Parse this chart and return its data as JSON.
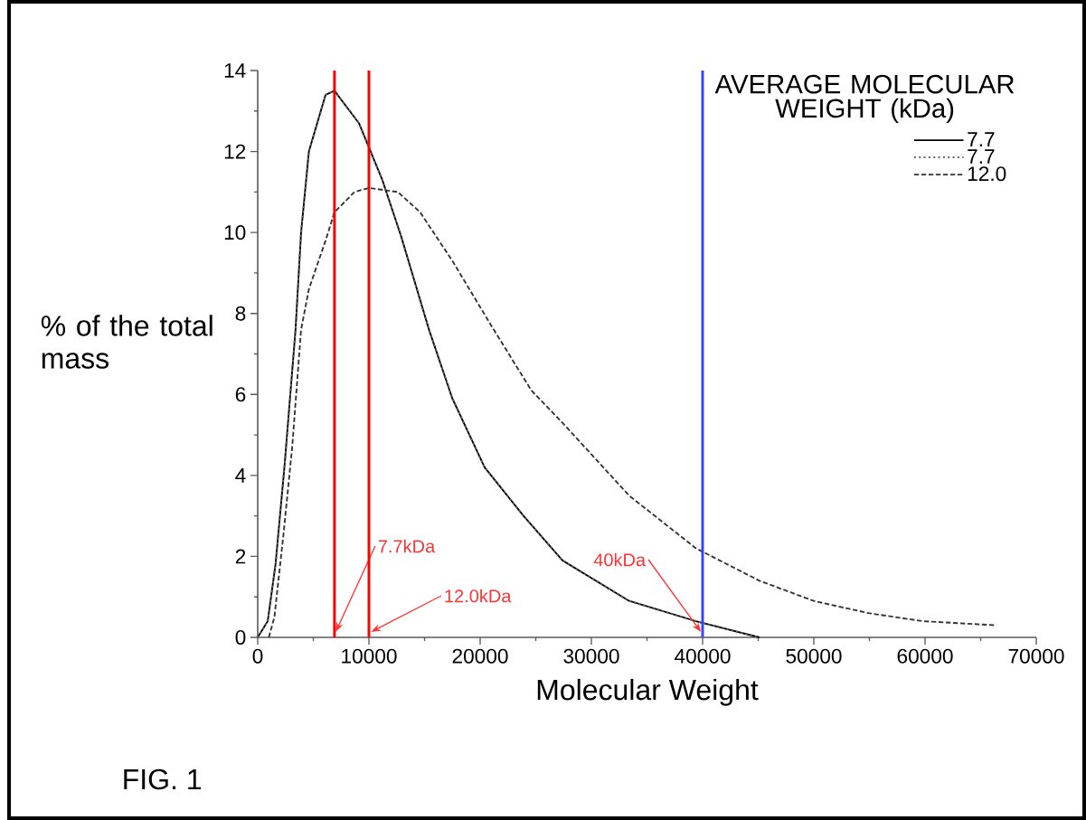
{
  "chart_data": {
    "type": "line",
    "xlabel": "Molecular Weight",
    "ylabel": "% of the total mass",
    "legend_title": "AVERAGE MOLECULAR WEIGHT (kDa)",
    "xlim": [
      0,
      70000
    ],
    "ylim": [
      0,
      14
    ],
    "xticks": [
      0,
      10000,
      20000,
      30000,
      40000,
      50000,
      60000,
      70000
    ],
    "yticks": [
      0,
      2,
      4,
      6,
      8,
      10,
      12,
      14
    ],
    "legend": "top right",
    "grid": false,
    "series": [
      {
        "name": "7.7",
        "color": "#000000",
        "line_style": "solid",
        "x": [
          0,
          900,
          1600,
          2400,
          3400,
          3900,
          4600,
          6100,
          6900,
          9100,
          11200,
          12900,
          15400,
          17500,
          20400,
          23900,
          27400,
          33400,
          39400,
          45100
        ],
        "values": [
          0,
          0.4,
          1.8,
          4.2,
          7.6,
          10.0,
          12.0,
          13.4,
          13.5,
          12.7,
          11.3,
          9.9,
          7.6,
          5.9,
          4.2,
          3.0,
          1.9,
          0.9,
          0.4,
          0
        ]
      },
      {
        "name": "7.7",
        "color": "#666666",
        "line_style": "dotted",
        "x": [
          0,
          900,
          1600,
          2400,
          3400,
          3900,
          4600,
          6100,
          6900,
          9100,
          11200,
          12900,
          15400,
          17500,
          20400,
          23900,
          27400,
          33400,
          39400,
          45100
        ],
        "values": [
          0,
          0.4,
          1.8,
          4.2,
          7.6,
          10.0,
          12.0,
          13.4,
          13.5,
          12.7,
          11.3,
          9.9,
          7.6,
          5.9,
          4.2,
          3.0,
          1.9,
          0.9,
          0.4,
          0
        ]
      },
      {
        "name": "12.0",
        "color": "#333333",
        "line_style": "dashed",
        "x": [
          1000,
          1500,
          2300,
          3100,
          3900,
          4600,
          6100,
          6900,
          8700,
          10000,
          12600,
          14600,
          17500,
          21000,
          24600,
          27400,
          33400,
          39400,
          45100,
          50000,
          54900,
          59800,
          66300
        ],
        "values": [
          0,
          0.5,
          2.5,
          4.7,
          7.6,
          8.6,
          9.8,
          10.5,
          11.0,
          11.1,
          11.0,
          10.5,
          9.3,
          7.7,
          6.1,
          5.3,
          3.5,
          2.2,
          1.4,
          0.9,
          0.6,
          0.4,
          0.3
        ]
      }
    ],
    "ref_lines": [
      {
        "axis": "x",
        "value": 6900,
        "color": "#ff0000",
        "label": "7.7kDa"
      },
      {
        "axis": "x",
        "value": 10000,
        "color": "#ff0000",
        "label": "12.0kDa"
      },
      {
        "axis": "x",
        "value": 40000,
        "color": "#3344ff",
        "label": "40kDa"
      }
    ],
    "annotations": [
      "FIG. 1"
    ]
  }
}
